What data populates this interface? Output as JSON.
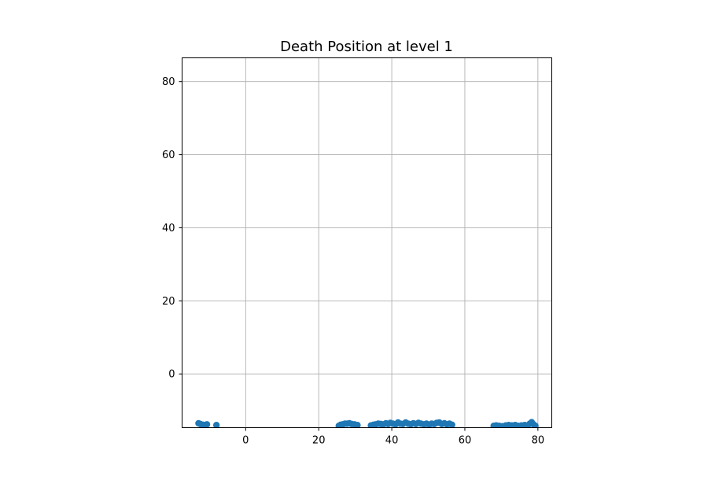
{
  "chart_data": {
    "type": "scatter",
    "title": "Death Position at level 1",
    "xlabel": "",
    "ylabel": "",
    "xlim": [
      -17.4,
      83.8
    ],
    "ylim": [
      -14.7,
      86.5
    ],
    "xticks": [
      0,
      20,
      40,
      60,
      80
    ],
    "yticks": [
      0,
      20,
      40,
      60,
      80
    ],
    "grid": true,
    "series": [
      {
        "color": "#1f77b4",
        "points": [
          [
            -12.9,
            -13.5
          ],
          [
            -12.4,
            -13.7
          ],
          [
            -11.7,
            -13.9
          ],
          [
            -11.0,
            -14.0
          ],
          [
            -10.6,
            -13.8
          ],
          [
            -8.0,
            -14.0
          ],
          [
            25.5,
            -14.2
          ],
          [
            26.0,
            -13.9
          ],
          [
            26.6,
            -13.8
          ],
          [
            27.2,
            -13.6
          ],
          [
            27.8,
            -13.6
          ],
          [
            28.4,
            -13.5
          ],
          [
            29.0,
            -13.7
          ],
          [
            29.8,
            -13.8
          ],
          [
            30.6,
            -14.0
          ],
          [
            34.3,
            -14.1
          ],
          [
            35.0,
            -13.9
          ],
          [
            35.6,
            -13.8
          ],
          [
            36.3,
            -13.6
          ],
          [
            37.0,
            -13.7
          ],
          [
            37.7,
            -13.8
          ],
          [
            38.4,
            -13.5
          ],
          [
            39.0,
            -13.7
          ],
          [
            39.6,
            -13.4
          ],
          [
            40.3,
            -13.6
          ],
          [
            41.0,
            -13.8
          ],
          [
            41.7,
            -13.3
          ],
          [
            42.3,
            -13.6
          ],
          [
            43.0,
            -13.7
          ],
          [
            43.8,
            -13.3
          ],
          [
            44.5,
            -13.6
          ],
          [
            45.2,
            -13.8
          ],
          [
            45.9,
            -13.5
          ],
          [
            46.6,
            -13.7
          ],
          [
            47.3,
            -13.4
          ],
          [
            48.0,
            -13.6
          ],
          [
            48.8,
            -13.8
          ],
          [
            49.5,
            -13.6
          ],
          [
            50.2,
            -13.9
          ],
          [
            50.9,
            -13.6
          ],
          [
            51.6,
            -13.7
          ],
          [
            52.3,
            -13.4
          ],
          [
            53.0,
            -13.3
          ],
          [
            53.7,
            -13.7
          ],
          [
            54.4,
            -13.5
          ],
          [
            55.1,
            -13.8
          ],
          [
            55.8,
            -13.6
          ],
          [
            56.5,
            -13.9
          ],
          [
            67.9,
            -14.2
          ],
          [
            68.6,
            -14.1
          ],
          [
            69.4,
            -14.2
          ],
          [
            70.3,
            -14.3
          ],
          [
            71.2,
            -14.1
          ],
          [
            72.0,
            -14.0
          ],
          [
            72.9,
            -14.1
          ],
          [
            73.8,
            -14.0
          ],
          [
            74.6,
            -14.2
          ],
          [
            75.5,
            -14.1
          ],
          [
            76.4,
            -14.0
          ],
          [
            77.2,
            -14.1
          ],
          [
            77.8,
            -13.6
          ],
          [
            78.3,
            -13.2
          ],
          [
            78.8,
            -13.8
          ],
          [
            79.3,
            -14.2
          ]
        ]
      }
    ]
  }
}
